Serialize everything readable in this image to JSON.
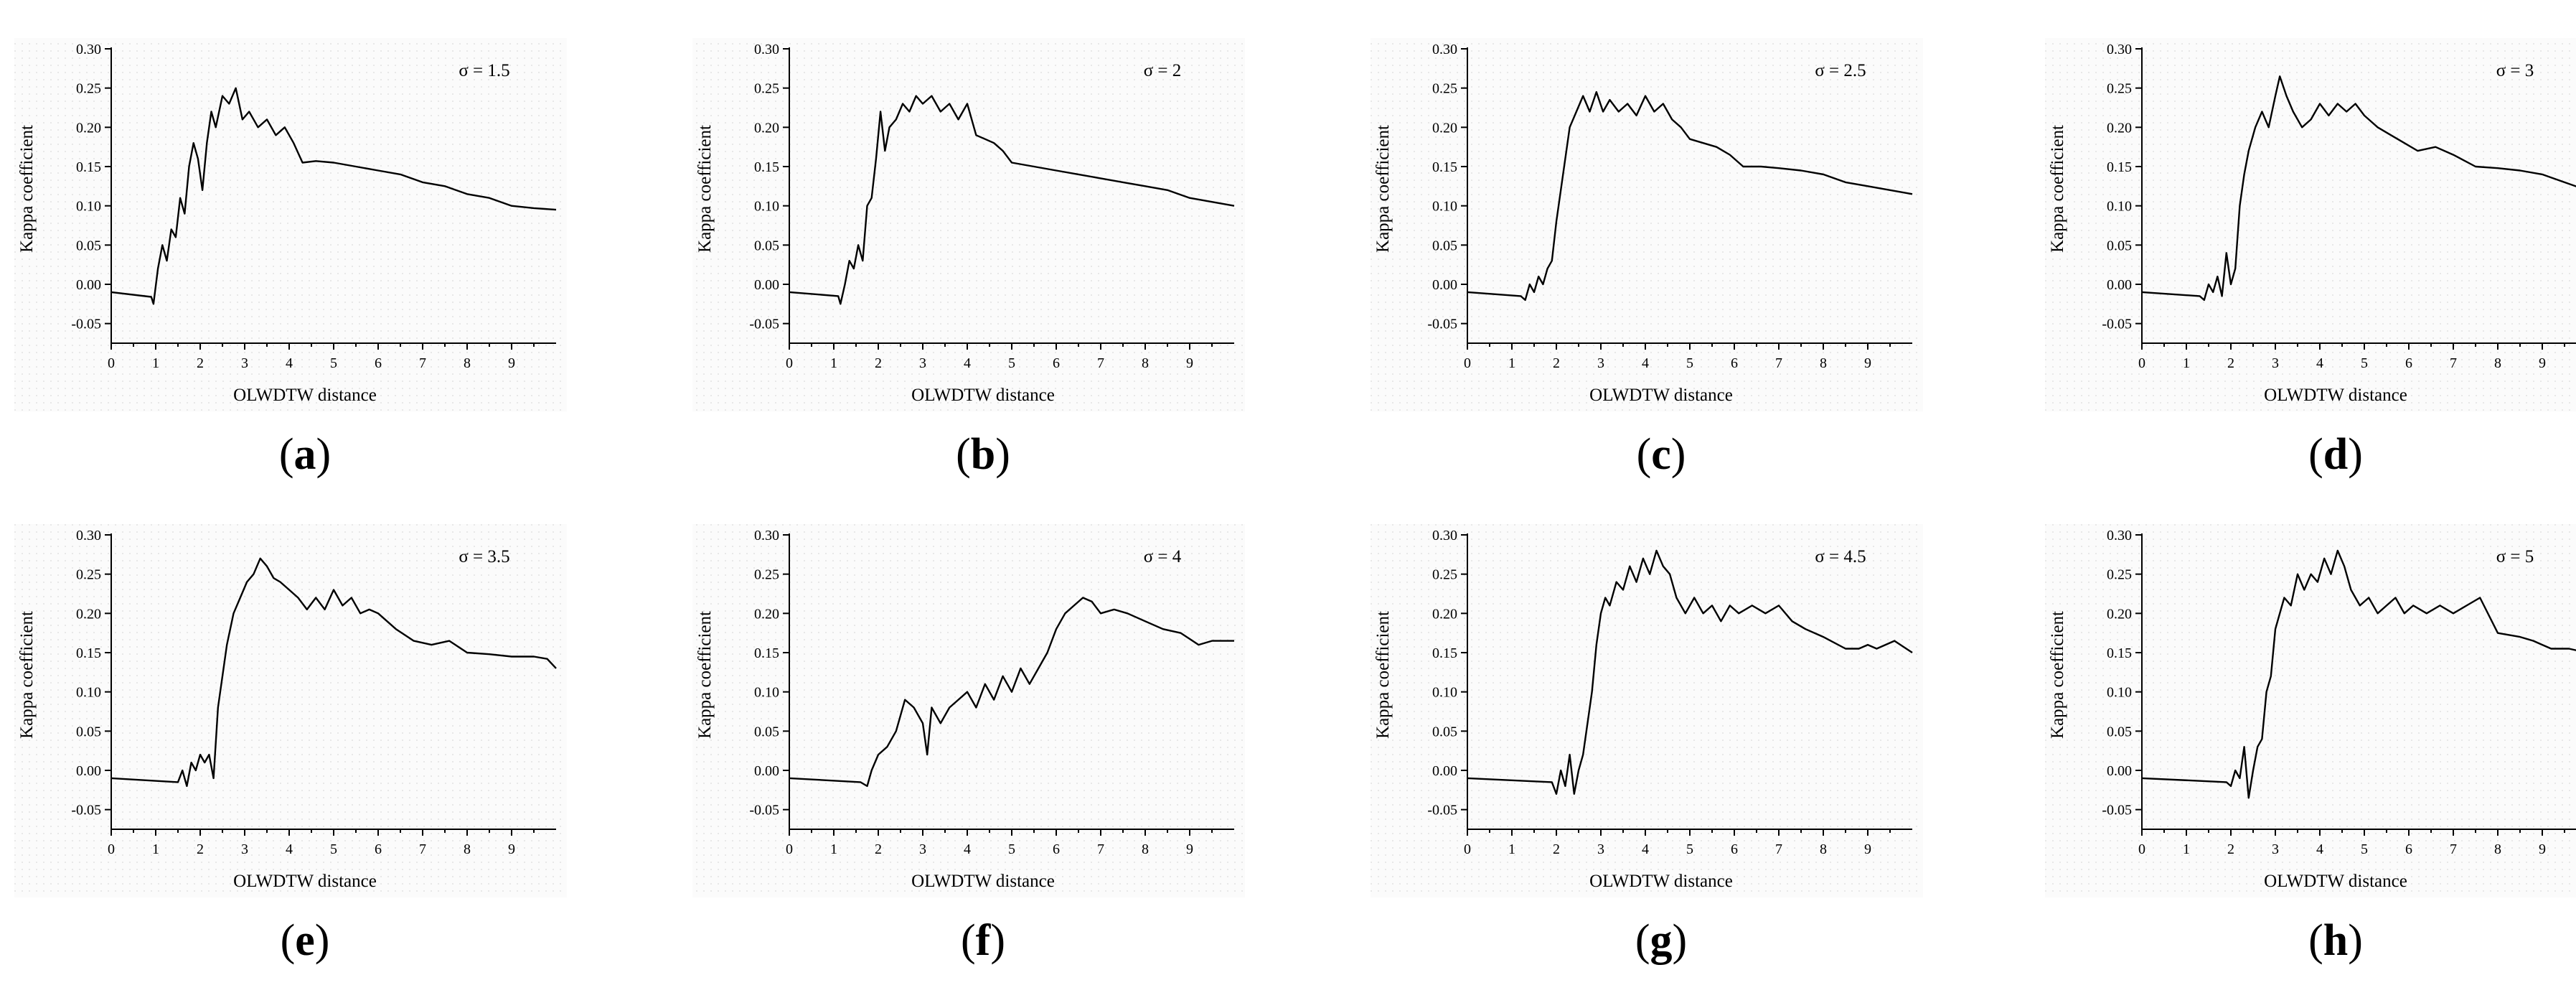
{
  "chart_data": [
    {
      "type": "line",
      "caption": "a",
      "annotation": "σ = 1.5",
      "xlabel": "OLWDTW distance",
      "ylabel": "Kappa coefficient",
      "xlim": [
        0,
        10
      ],
      "ylim": [
        -0.075,
        0.3
      ],
      "xticks": [
        0,
        1,
        2,
        3,
        4,
        5,
        6,
        7,
        8,
        9
      ],
      "yticks": [
        -0.05,
        0.0,
        0.05,
        0.1,
        0.15,
        0.2,
        0.25,
        0.3
      ],
      "ytick_labels": [
        "-0.05",
        "0.00",
        "0.05",
        "0.10",
        "0.15",
        "0.20",
        "0.25",
        "0.30"
      ],
      "grid": true,
      "series": [
        {
          "x": [
            0,
            0.9,
            0.95,
            1.05,
            1.15,
            1.25,
            1.35,
            1.45,
            1.55,
            1.65,
            1.75,
            1.85,
            1.95,
            2.05,
            2.15,
            2.25,
            2.35,
            2.5,
            2.65,
            2.8,
            2.95,
            3.1,
            3.3,
            3.5,
            3.7,
            3.9,
            4.1,
            4.3,
            4.6,
            5.0,
            5.5,
            6.0,
            6.5,
            7.0,
            7.5,
            8.0,
            8.5,
            9.0,
            9.5,
            10.0
          ],
          "y": [
            -0.01,
            -0.016,
            -0.025,
            0.02,
            0.05,
            0.03,
            0.07,
            0.06,
            0.11,
            0.09,
            0.15,
            0.18,
            0.16,
            0.12,
            0.18,
            0.22,
            0.2,
            0.24,
            0.23,
            0.25,
            0.21,
            0.22,
            0.2,
            0.21,
            0.19,
            0.2,
            0.18,
            0.155,
            0.157,
            0.155,
            0.15,
            0.145,
            0.14,
            0.13,
            0.125,
            0.115,
            0.11,
            0.1,
            0.097,
            0.095
          ]
        }
      ]
    },
    {
      "type": "line",
      "caption": "b",
      "annotation": "σ = 2",
      "xlabel": "OLWDTW distance",
      "ylabel": "Kappa coefficient",
      "xlim": [
        0,
        10
      ],
      "ylim": [
        -0.075,
        0.3
      ],
      "xticks": [
        0,
        1,
        2,
        3,
        4,
        5,
        6,
        7,
        8,
        9
      ],
      "yticks": [
        -0.05,
        0.0,
        0.05,
        0.1,
        0.15,
        0.2,
        0.25,
        0.3
      ],
      "ytick_labels": [
        "-0.05",
        "0.00",
        "0.05",
        "0.10",
        "0.15",
        "0.20",
        "0.25",
        "0.30"
      ],
      "grid": true,
      "series": [
        {
          "x": [
            0,
            1.1,
            1.15,
            1.25,
            1.35,
            1.45,
            1.55,
            1.65,
            1.75,
            1.85,
            1.95,
            2.05,
            2.15,
            2.25,
            2.4,
            2.55,
            2.7,
            2.85,
            3.0,
            3.2,
            3.4,
            3.6,
            3.8,
            4.0,
            4.2,
            4.4,
            4.6,
            4.8,
            5.0,
            5.5,
            6.0,
            6.5,
            7.0,
            7.5,
            8.0,
            8.5,
            9.0,
            9.5,
            10.0
          ],
          "y": [
            -0.01,
            -0.015,
            -0.025,
            0.0,
            0.03,
            0.02,
            0.05,
            0.03,
            0.1,
            0.11,
            0.16,
            0.22,
            0.17,
            0.2,
            0.21,
            0.23,
            0.22,
            0.24,
            0.23,
            0.24,
            0.22,
            0.23,
            0.21,
            0.23,
            0.19,
            0.185,
            0.18,
            0.17,
            0.155,
            0.15,
            0.145,
            0.14,
            0.135,
            0.13,
            0.125,
            0.12,
            0.11,
            0.105,
            0.1
          ]
        }
      ]
    },
    {
      "type": "line",
      "caption": "c",
      "annotation": "σ = 2.5",
      "xlabel": "OLWDTW distance",
      "ylabel": "Kappa coefficient",
      "xlim": [
        0,
        10
      ],
      "ylim": [
        -0.075,
        0.3
      ],
      "xticks": [
        0,
        1,
        2,
        3,
        4,
        5,
        6,
        7,
        8,
        9
      ],
      "yticks": [
        -0.05,
        0.0,
        0.05,
        0.1,
        0.15,
        0.2,
        0.25,
        0.3
      ],
      "ytick_labels": [
        "-0.05",
        "0.00",
        "0.05",
        "0.10",
        "0.15",
        "0.20",
        "0.25",
        "0.30"
      ],
      "grid": true,
      "series": [
        {
          "x": [
            0,
            1.2,
            1.3,
            1.4,
            1.5,
            1.6,
            1.7,
            1.8,
            1.9,
            2.0,
            2.1,
            2.2,
            2.3,
            2.45,
            2.6,
            2.75,
            2.9,
            3.05,
            3.2,
            3.4,
            3.6,
            3.8,
            4.0,
            4.2,
            4.4,
            4.6,
            4.8,
            5.0,
            5.3,
            5.6,
            5.9,
            6.2,
            6.6,
            7.0,
            7.5,
            8.0,
            8.5,
            9.0,
            9.5,
            10.0
          ],
          "y": [
            -0.01,
            -0.015,
            -0.02,
            0.0,
            -0.01,
            0.01,
            0.0,
            0.02,
            0.03,
            0.08,
            0.12,
            0.16,
            0.2,
            0.22,
            0.24,
            0.22,
            0.245,
            0.22,
            0.235,
            0.22,
            0.23,
            0.215,
            0.24,
            0.22,
            0.23,
            0.21,
            0.2,
            0.185,
            0.18,
            0.175,
            0.165,
            0.15,
            0.15,
            0.148,
            0.145,
            0.14,
            0.13,
            0.125,
            0.12,
            0.115
          ]
        }
      ]
    },
    {
      "type": "line",
      "caption": "d",
      "annotation": "σ = 3",
      "xlabel": "OLWDTW distance",
      "ylabel": "Kappa coefficient",
      "xlim": [
        0,
        10
      ],
      "ylim": [
        -0.075,
        0.3
      ],
      "xticks": [
        0,
        1,
        2,
        3,
        4,
        5,
        6,
        7,
        8,
        9
      ],
      "yticks": [
        -0.05,
        0.0,
        0.05,
        0.1,
        0.15,
        0.2,
        0.25,
        0.3
      ],
      "ytick_labels": [
        "-0.05",
        "0.00",
        "0.05",
        "0.10",
        "0.15",
        "0.20",
        "0.25",
        "0.30"
      ],
      "grid": true,
      "series": [
        {
          "x": [
            0,
            1.3,
            1.4,
            1.5,
            1.6,
            1.7,
            1.8,
            1.9,
            2.0,
            2.1,
            2.2,
            2.3,
            2.4,
            2.55,
            2.7,
            2.85,
            3.0,
            3.1,
            3.25,
            3.4,
            3.6,
            3.8,
            4.0,
            4.2,
            4.4,
            4.6,
            4.8,
            5.0,
            5.3,
            5.6,
            5.9,
            6.2,
            6.6,
            7.0,
            7.5,
            8.0,
            8.5,
            9.0,
            9.5,
            10.0
          ],
          "y": [
            -0.01,
            -0.015,
            -0.02,
            0.0,
            -0.01,
            0.01,
            -0.015,
            0.04,
            0.0,
            0.02,
            0.1,
            0.14,
            0.17,
            0.2,
            0.22,
            0.2,
            0.24,
            0.265,
            0.24,
            0.22,
            0.2,
            0.21,
            0.23,
            0.215,
            0.23,
            0.22,
            0.23,
            0.215,
            0.2,
            0.19,
            0.18,
            0.17,
            0.175,
            0.165,
            0.15,
            0.148,
            0.145,
            0.14,
            0.13,
            0.12
          ]
        }
      ]
    },
    {
      "type": "line",
      "caption": "e",
      "annotation": "σ = 3.5",
      "xlabel": "OLWDTW distance",
      "ylabel": "Kappa coefficient",
      "xlim": [
        0,
        10
      ],
      "ylim": [
        -0.075,
        0.3
      ],
      "xticks": [
        0,
        1,
        2,
        3,
        4,
        5,
        6,
        7,
        8,
        9
      ],
      "yticks": [
        -0.05,
        0.0,
        0.05,
        0.1,
        0.15,
        0.2,
        0.25,
        0.3
      ],
      "ytick_labels": [
        "-0.05",
        "0.00",
        "0.05",
        "0.10",
        "0.15",
        "0.20",
        "0.25",
        "0.30"
      ],
      "grid": true,
      "series": [
        {
          "x": [
            0,
            1.5,
            1.6,
            1.7,
            1.8,
            1.9,
            2.0,
            2.1,
            2.2,
            2.3,
            2.4,
            2.5,
            2.6,
            2.75,
            2.9,
            3.05,
            3.2,
            3.35,
            3.5,
            3.65,
            3.8,
            4.0,
            4.2,
            4.4,
            4.6,
            4.8,
            5.0,
            5.2,
            5.4,
            5.6,
            5.8,
            6.0,
            6.4,
            6.8,
            7.2,
            7.6,
            8.0,
            8.5,
            9.0,
            9.5,
            9.8,
            10.0
          ],
          "y": [
            -0.01,
            -0.015,
            0.0,
            -0.02,
            0.01,
            0.0,
            0.02,
            0.01,
            0.02,
            -0.01,
            0.08,
            0.12,
            0.16,
            0.2,
            0.22,
            0.24,
            0.25,
            0.27,
            0.26,
            0.245,
            0.24,
            0.23,
            0.22,
            0.205,
            0.22,
            0.205,
            0.23,
            0.21,
            0.22,
            0.2,
            0.205,
            0.2,
            0.18,
            0.165,
            0.16,
            0.165,
            0.15,
            0.148,
            0.145,
            0.145,
            0.142,
            0.13
          ]
        }
      ]
    },
    {
      "type": "line",
      "caption": "f",
      "annotation": "σ = 4",
      "xlabel": "OLWDTW distance",
      "ylabel": "Kappa coefficient",
      "xlim": [
        0,
        10
      ],
      "ylim": [
        -0.075,
        0.3
      ],
      "xticks": [
        0,
        1,
        2,
        3,
        4,
        5,
        6,
        7,
        8,
        9
      ],
      "yticks": [
        -0.05,
        0.0,
        0.05,
        0.1,
        0.15,
        0.2,
        0.25,
        0.3
      ],
      "ytick_labels": [
        "-0.05",
        "0.00",
        "0.05",
        "0.10",
        "0.15",
        "0.20",
        "0.25",
        "0.30"
      ],
      "grid": true,
      "series": [
        {
          "x": [
            0,
            1.6,
            1.75,
            1.85,
            2.0,
            2.2,
            2.4,
            2.6,
            2.8,
            3.0,
            3.1,
            3.2,
            3.4,
            3.6,
            3.8,
            4.0,
            4.2,
            4.4,
            4.6,
            4.8,
            5.0,
            5.2,
            5.4,
            5.6,
            5.8,
            6.0,
            6.2,
            6.4,
            6.6,
            6.8,
            7.0,
            7.3,
            7.6,
            8.0,
            8.4,
            8.8,
            9.2,
            9.5,
            10.0
          ],
          "y": [
            -0.01,
            -0.015,
            -0.02,
            0.0,
            0.02,
            0.03,
            0.05,
            0.09,
            0.08,
            0.06,
            0.02,
            0.08,
            0.06,
            0.08,
            0.09,
            0.1,
            0.08,
            0.11,
            0.09,
            0.12,
            0.1,
            0.13,
            0.11,
            0.13,
            0.15,
            0.18,
            0.2,
            0.21,
            0.22,
            0.215,
            0.2,
            0.205,
            0.2,
            0.19,
            0.18,
            0.175,
            0.16,
            0.165,
            0.165
          ]
        }
      ]
    },
    {
      "type": "line",
      "caption": "g",
      "annotation": "σ = 4.5",
      "xlabel": "OLWDTW distance",
      "ylabel": "Kappa coefficient",
      "xlim": [
        0,
        10
      ],
      "ylim": [
        -0.075,
        0.3
      ],
      "xticks": [
        0,
        1,
        2,
        3,
        4,
        5,
        6,
        7,
        8,
        9
      ],
      "yticks": [
        -0.05,
        0.0,
        0.05,
        0.1,
        0.15,
        0.2,
        0.25,
        0.3
      ],
      "ytick_labels": [
        "-0.05",
        "0.00",
        "0.05",
        "0.10",
        "0.15",
        "0.20",
        "0.25",
        "0.30"
      ],
      "grid": true,
      "series": [
        {
          "x": [
            0,
            1.9,
            2.0,
            2.1,
            2.2,
            2.3,
            2.4,
            2.5,
            2.6,
            2.7,
            2.8,
            2.9,
            3.0,
            3.1,
            3.2,
            3.35,
            3.5,
            3.65,
            3.8,
            3.95,
            4.1,
            4.25,
            4.4,
            4.55,
            4.7,
            4.9,
            5.1,
            5.3,
            5.5,
            5.7,
            5.9,
            6.1,
            6.4,
            6.7,
            7.0,
            7.3,
            7.6,
            8.0,
            8.5,
            8.8,
            9.0,
            9.2,
            9.6,
            10.0
          ],
          "y": [
            -0.01,
            -0.015,
            -0.03,
            0.0,
            -0.02,
            0.02,
            -0.03,
            0.0,
            0.02,
            0.06,
            0.1,
            0.16,
            0.2,
            0.22,
            0.21,
            0.24,
            0.23,
            0.26,
            0.24,
            0.27,
            0.25,
            0.28,
            0.26,
            0.25,
            0.22,
            0.2,
            0.22,
            0.2,
            0.21,
            0.19,
            0.21,
            0.2,
            0.21,
            0.2,
            0.21,
            0.19,
            0.18,
            0.17,
            0.155,
            0.155,
            0.16,
            0.155,
            0.165,
            0.15
          ]
        }
      ]
    },
    {
      "type": "line",
      "caption": "h",
      "annotation": "σ = 5",
      "xlabel": "OLWDTW distance",
      "ylabel": "Kappa coefficient",
      "xlim": [
        0,
        10
      ],
      "ylim": [
        -0.075,
        0.3
      ],
      "xticks": [
        0,
        1,
        2,
        3,
        4,
        5,
        6,
        7,
        8,
        9
      ],
      "yticks": [
        -0.05,
        0.0,
        0.05,
        0.1,
        0.15,
        0.2,
        0.25,
        0.3
      ],
      "ytick_labels": [
        "-0.05",
        "0.00",
        "0.05",
        "0.10",
        "0.15",
        "0.20",
        "0.25",
        "0.30"
      ],
      "grid": true,
      "series": [
        {
          "x": [
            0,
            1.9,
            2.0,
            2.1,
            2.2,
            2.3,
            2.4,
            2.5,
            2.6,
            2.7,
            2.8,
            2.9,
            3.0,
            3.1,
            3.2,
            3.35,
            3.5,
            3.65,
            3.8,
            3.95,
            4.1,
            4.25,
            4.4,
            4.55,
            4.7,
            4.9,
            5.1,
            5.3,
            5.5,
            5.7,
            5.9,
            6.1,
            6.4,
            6.7,
            7.0,
            7.3,
            7.6,
            8.0,
            8.5,
            8.8,
            9.0,
            9.2,
            9.6,
            10.0
          ],
          "y": [
            -0.01,
            -0.015,
            -0.02,
            0.0,
            -0.01,
            0.03,
            -0.035,
            0.0,
            0.03,
            0.04,
            0.1,
            0.12,
            0.18,
            0.2,
            0.22,
            0.21,
            0.25,
            0.23,
            0.25,
            0.24,
            0.27,
            0.25,
            0.28,
            0.26,
            0.23,
            0.21,
            0.22,
            0.2,
            0.21,
            0.22,
            0.2,
            0.21,
            0.2,
            0.21,
            0.2,
            0.21,
            0.22,
            0.175,
            0.17,
            0.165,
            0.16,
            0.155,
            0.155,
            0.15
          ]
        }
      ]
    }
  ]
}
